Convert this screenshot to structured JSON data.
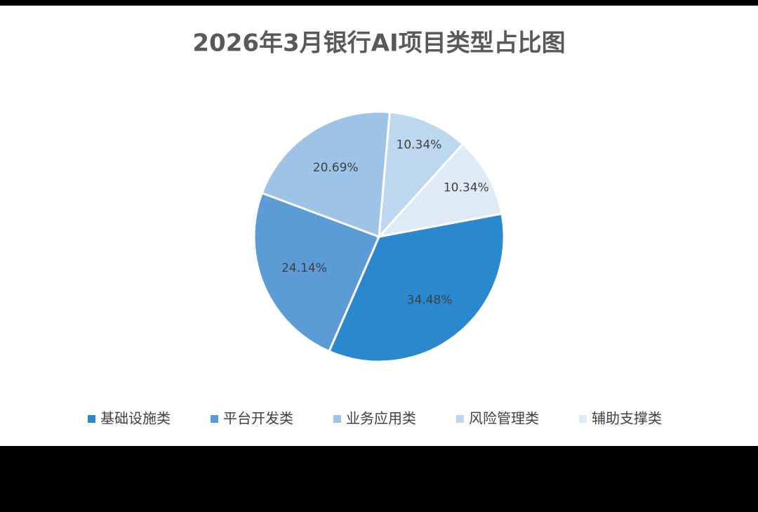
{
  "chart_data": {
    "type": "pie",
    "title": "2026年3月银行AI项目类型占比图",
    "categories": [
      "基础设施类",
      "平台开发类",
      "业务应用类",
      "风险管理类",
      "辅助支撑类"
    ],
    "values": [
      34.48,
      24.14,
      20.69,
      10.34,
      10.34
    ],
    "value_labels": [
      "34.48%",
      "24.14%",
      "20.69%",
      "10.34%",
      "10.34%"
    ],
    "colors": [
      "#2a88cf",
      "#5b9bd6",
      "#9dc3e6",
      "#bdd7ee",
      "#deebf7"
    ],
    "legend": "bottom"
  }
}
